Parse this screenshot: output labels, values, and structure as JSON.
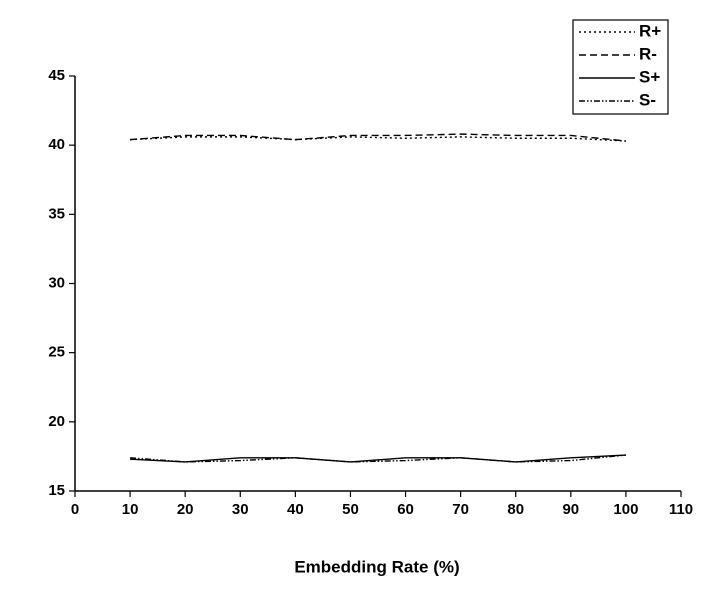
{
  "chart_data": {
    "type": "line",
    "x_label": "Embedding Rate (%)",
    "x": [
      10,
      20,
      30,
      40,
      50,
      60,
      70,
      80,
      90,
      100
    ],
    "series": [
      {
        "name": "R+",
        "color": "#000000",
        "dash": "2,3",
        "values": [
          40.4,
          40.6,
          40.6,
          40.4,
          40.6,
          40.5,
          40.6,
          40.5,
          40.5,
          40.3
        ]
      },
      {
        "name": "R-",
        "color": "#000000",
        "dash": "7,4",
        "values": [
          40.4,
          40.7,
          40.7,
          40.4,
          40.7,
          40.7,
          40.8,
          40.7,
          40.7,
          40.3
        ]
      },
      {
        "name": "S+",
        "color": "#000000",
        "dash": "none",
        "values": [
          17.3,
          17.1,
          17.4,
          17.4,
          17.1,
          17.4,
          17.4,
          17.1,
          17.4,
          17.6
        ]
      },
      {
        "name": "S-",
        "color": "#000000",
        "dash": "6,2,1.5,2,1.5,2",
        "values": [
          17.4,
          17.1,
          17.2,
          17.4,
          17.1,
          17.2,
          17.4,
          17.1,
          17.2,
          17.6
        ]
      }
    ],
    "xlim": [
      0,
      110
    ],
    "xticks": [
      0,
      10,
      20,
      30,
      40,
      50,
      60,
      70,
      80,
      90,
      100,
      110
    ],
    "ylim": [
      15,
      45
    ],
    "yticks": [
      15,
      20,
      25,
      30,
      35,
      40,
      45
    ],
    "legend": "top-right"
  }
}
